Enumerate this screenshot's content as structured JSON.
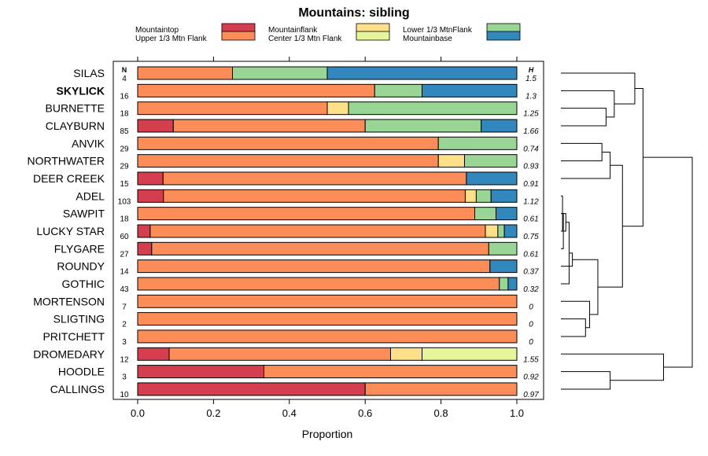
{
  "chart_data": {
    "type": "bar",
    "orientation": "horizontal",
    "stacked": true,
    "title": "Mountains: sibling",
    "xlabel": "Proportion",
    "ylabel": "",
    "xlim": [
      0,
      1
    ],
    "xticks": [
      "0.0",
      "0.2",
      "0.4",
      "0.6",
      "0.8",
      "1.0"
    ],
    "n_header": "N",
    "h_header": "H",
    "highlight_category": "SKYLICK",
    "legend": [
      {
        "name": "Mountaintop",
        "color": "#d53e4f"
      },
      {
        "name": "Upper 1/3 Mtn Flank",
        "color": "#fc8d59"
      },
      {
        "name": "Mountainflank",
        "color": "#fee08b"
      },
      {
        "name": "Center 1/3 Mtn Flank",
        "color": "#e6f598"
      },
      {
        "name": "Lower 1/3 MtnFlank",
        "color": "#99d594"
      },
      {
        "name": "Mountainbase",
        "color": "#3288bd"
      }
    ],
    "categories": [
      "SILAS",
      "SKYLICK",
      "BURNETTE",
      "CLAYBURN",
      "ANVIK",
      "NORTHWATER",
      "DEER CREEK",
      "ADEL",
      "SAWPIT",
      "LUCKY STAR",
      "FLYGARE",
      "ROUNDY",
      "GOTHIC",
      "MORTENSON",
      "SLIGTING",
      "PRITCHETT",
      "DROMEDARY",
      "HOODLE",
      "CALLINGS"
    ],
    "n": [
      "4",
      "16",
      "18",
      "85",
      "29",
      "29",
      "15",
      "103",
      "18",
      "60",
      "27",
      "14",
      "43",
      "7",
      "2",
      "3",
      "12",
      "3",
      "10"
    ],
    "h": [
      "1.5",
      "1.3",
      "1.25",
      "1.66",
      "0.74",
      "0.93",
      "0.91",
      "1.12",
      "0.61",
      "0.75",
      "0.61",
      "0.37",
      "0.32",
      "0",
      "0",
      "0",
      "1.55",
      "0.92",
      "0.97"
    ],
    "series": [
      {
        "name": "Mountaintop",
        "values": [
          0,
          0,
          0,
          0.094,
          0,
          0,
          0.067,
          0.068,
          0,
          0.033,
          0.037,
          0,
          0,
          0,
          0,
          0,
          0.083,
          0.333,
          0.6
        ]
      },
      {
        "name": "Upper 1/3 Mtn Flank",
        "values": [
          0.25,
          0.625,
          0.5,
          0.506,
          0.793,
          0.793,
          0.8,
          0.796,
          0.889,
          0.884,
          0.889,
          0.929,
          0.954,
          1.0,
          1.0,
          1.0,
          0.584,
          0.667,
          0.4
        ]
      },
      {
        "name": "Mountainflank",
        "values": [
          0,
          0,
          0.056,
          0,
          0,
          0.069,
          0,
          0.029,
          0,
          0.033,
          0,
          0,
          0,
          0,
          0,
          0,
          0.083,
          0,
          0
        ]
      },
      {
        "name": "Center 1/3 Mtn Flank",
        "values": [
          0,
          0,
          0,
          0,
          0,
          0,
          0,
          0,
          0,
          0,
          0,
          0,
          0,
          0,
          0,
          0,
          0.25,
          0,
          0
        ]
      },
      {
        "name": "Lower 1/3 MtnFlank",
        "values": [
          0.25,
          0.125,
          0.444,
          0.306,
          0.207,
          0.138,
          0,
          0.039,
          0.056,
          0.017,
          0.074,
          0,
          0.023,
          0,
          0,
          0,
          0,
          0,
          0
        ]
      },
      {
        "name": "Mountainbase",
        "values": [
          0.5,
          0.25,
          0,
          0.094,
          0,
          0,
          0.133,
          0.068,
          0.055,
          0.033,
          0,
          0.071,
          0.023,
          0,
          0,
          0,
          0,
          0,
          0
        ]
      }
    ],
    "dendrogram_merges": [
      [
        -8,
        -10
      ],
      [
        -11,
        1
      ],
      [
        -9,
        2
      ],
      [
        -13,
        3
      ],
      [
        -12,
        4
      ],
      [
        -15,
        -16
      ],
      [
        -14,
        6
      ],
      [
        5,
        7
      ],
      [
        -3,
        -4
      ],
      [
        -2,
        9
      ],
      [
        -5,
        -6
      ],
      [
        -7,
        11
      ],
      [
        8,
        12
      ],
      [
        -1,
        10
      ],
      [
        14,
        13
      ],
      [
        -18,
        -19
      ],
      [
        -17,
        16
      ],
      [
        15,
        17
      ]
    ],
    "dendrogram_heights": [
      0.02,
      0.03,
      0.06,
      0.1,
      0.14,
      0.3,
      0.35,
      0.45,
      0.55,
      0.65,
      0.5,
      0.6,
      0.75,
      0.9,
      1.0,
      0.6,
      1.25,
      1.6
    ]
  }
}
